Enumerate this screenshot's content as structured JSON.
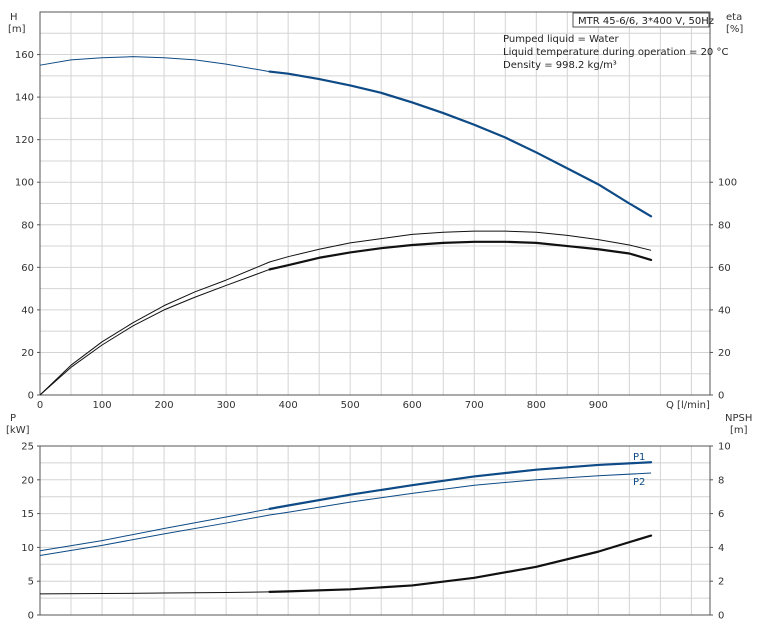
{
  "title_box": "MTR 45-6/6, 3*400 V, 50Hz",
  "info_lines": [
    "Pumped liquid = Water",
    "Liquid temperature during operation = 20 °C",
    "Density = 998.2 kg/m³"
  ],
  "colors": {
    "blue": "#0d4a86",
    "black": "#111111",
    "grid": "#d4d4d4"
  },
  "chart_data": [
    {
      "type": "line",
      "axes": {
        "x": {
          "label": "Q [l/min]",
          "range": [
            0,
            1080
          ],
          "ticks": [
            0,
            100,
            200,
            300,
            400,
            500,
            600,
            700,
            800,
            900
          ]
        },
        "y_left": {
          "label_line1": "H",
          "label_line2": "[m]",
          "range": [
            0,
            180
          ],
          "ticks": [
            0,
            20,
            40,
            60,
            80,
            100,
            120,
            140,
            160
          ]
        },
        "y_right": {
          "label_line1": "eta",
          "label_line2": "[%]",
          "range": [
            0,
            180
          ],
          "ticks": [
            0,
            20,
            40,
            60,
            80,
            100
          ]
        }
      },
      "grid": true,
      "series": [
        {
          "key": "H",
          "color": "blue",
          "bold_from": 370,
          "points": [
            [
              0,
              155
            ],
            [
              50,
              157.5
            ],
            [
              100,
              158.5
            ],
            [
              150,
              159
            ],
            [
              200,
              158.5
            ],
            [
              250,
              157.5
            ],
            [
              300,
              155.5
            ],
            [
              370,
              152
            ],
            [
              400,
              151
            ],
            [
              450,
              148.5
            ],
            [
              500,
              145.5
            ],
            [
              550,
              142
            ],
            [
              600,
              137.5
            ],
            [
              650,
              132.5
            ],
            [
              700,
              127
            ],
            [
              750,
              121
            ],
            [
              800,
              114
            ],
            [
              850,
              106.5
            ],
            [
              900,
              99
            ],
            [
              950,
              90
            ],
            [
              985,
              84
            ]
          ]
        },
        {
          "key": "eta_upper",
          "color": "black",
          "bold_from": 9999,
          "points": [
            [
              0,
              0
            ],
            [
              50,
              14
            ],
            [
              100,
              25
            ],
            [
              150,
              34
            ],
            [
              200,
              42
            ],
            [
              250,
              48.5
            ],
            [
              300,
              54
            ],
            [
              370,
              62.5
            ],
            [
              400,
              65
            ],
            [
              450,
              68.5
            ],
            [
              500,
              71.5
            ],
            [
              550,
              73.5
            ],
            [
              600,
              75.5
            ],
            [
              650,
              76.5
            ],
            [
              700,
              77
            ],
            [
              750,
              77
            ],
            [
              800,
              76.5
            ],
            [
              850,
              75
            ],
            [
              900,
              73
            ],
            [
              950,
              70.5
            ],
            [
              985,
              68
            ]
          ]
        },
        {
          "key": "eta",
          "color": "black",
          "bold_from": 370,
          "points": [
            [
              0,
              0
            ],
            [
              50,
              13
            ],
            [
              100,
              23.5
            ],
            [
              150,
              32.5
            ],
            [
              200,
              40
            ],
            [
              250,
              46
            ],
            [
              300,
              51.5
            ],
            [
              370,
              59
            ],
            [
              400,
              61
            ],
            [
              450,
              64.5
            ],
            [
              500,
              67
            ],
            [
              550,
              69
            ],
            [
              600,
              70.5
            ],
            [
              650,
              71.5
            ],
            [
              700,
              72
            ],
            [
              750,
              72
            ],
            [
              800,
              71.5
            ],
            [
              850,
              70
            ],
            [
              900,
              68.5
            ],
            [
              950,
              66.5
            ],
            [
              985,
              63.5
            ]
          ]
        }
      ]
    },
    {
      "type": "line",
      "axes": {
        "x": {
          "range": [
            0,
            1080
          ]
        },
        "y_left": {
          "label_line1": "P",
          "label_line2": "[kW]",
          "range": [
            0,
            25
          ],
          "ticks": [
            0,
            5,
            10,
            15,
            20,
            25
          ]
        },
        "y_right": {
          "label_line1": "NPSH",
          "label_line2": "[m]",
          "range": [
            0,
            10
          ],
          "ticks": [
            0,
            2,
            4,
            6,
            8,
            10
          ]
        }
      },
      "grid": true,
      "series": [
        {
          "key": "P1",
          "name": "P1",
          "color": "blue",
          "bold_from": 370,
          "axis": "left",
          "points": [
            [
              0,
              9.5
            ],
            [
              100,
              11
            ],
            [
              200,
              12.8
            ],
            [
              300,
              14.5
            ],
            [
              370,
              15.7
            ],
            [
              400,
              16.2
            ],
            [
              500,
              17.8
            ],
            [
              600,
              19.2
            ],
            [
              700,
              20.5
            ],
            [
              800,
              21.5
            ],
            [
              900,
              22.2
            ],
            [
              985,
              22.6
            ]
          ]
        },
        {
          "key": "P2",
          "name": "P2",
          "color": "blue",
          "bold_from": 9999,
          "axis": "left",
          "points": [
            [
              0,
              8.8
            ],
            [
              100,
              10.3
            ],
            [
              200,
              12
            ],
            [
              300,
              13.6
            ],
            [
              370,
              14.8
            ],
            [
              400,
              15.2
            ],
            [
              500,
              16.7
            ],
            [
              600,
              18
            ],
            [
              700,
              19.2
            ],
            [
              800,
              20
            ],
            [
              900,
              20.6
            ],
            [
              985,
              21
            ]
          ]
        },
        {
          "key": "NPSH",
          "color": "black",
          "bold_from": 370,
          "axis": "right",
          "points": [
            [
              0,
              1.25
            ],
            [
              100,
              1.27
            ],
            [
              200,
              1.3
            ],
            [
              300,
              1.33
            ],
            [
              370,
              1.37
            ],
            [
              400,
              1.4
            ],
            [
              500,
              1.52
            ],
            [
              600,
              1.75
            ],
            [
              700,
              2.2
            ],
            [
              800,
              2.85
            ],
            [
              900,
              3.75
            ],
            [
              985,
              4.7
            ]
          ]
        }
      ]
    }
  ]
}
